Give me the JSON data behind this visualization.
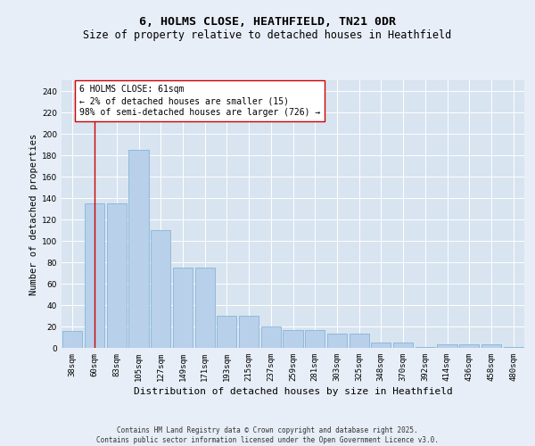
{
  "title1": "6, HOLMS CLOSE, HEATHFIELD, TN21 0DR",
  "title2": "Size of property relative to detached houses in Heathfield",
  "xlabel": "Distribution of detached houses by size in Heathfield",
  "ylabel": "Number of detached properties",
  "categories": [
    "38sqm",
    "60sqm",
    "83sqm",
    "105sqm",
    "127sqm",
    "149sqm",
    "171sqm",
    "193sqm",
    "215sqm",
    "237sqm",
    "259sqm",
    "281sqm",
    "303sqm",
    "325sqm",
    "348sqm",
    "370sqm",
    "392sqm",
    "414sqm",
    "436sqm",
    "458sqm",
    "480sqm"
  ],
  "values": [
    16,
    135,
    135,
    185,
    110,
    75,
    75,
    30,
    30,
    20,
    17,
    17,
    13,
    13,
    5,
    5,
    1,
    3,
    3,
    3,
    1
  ],
  "bar_color": "#b8d0ea",
  "bar_edge_color": "#7aadd4",
  "annotation_box_text": "6 HOLMS CLOSE: 61sqm\n← 2% of detached houses are smaller (15)\n98% of semi-detached houses are larger (726) →",
  "vline_x": 1,
  "vline_color": "#cc0000",
  "ylim": [
    0,
    250
  ],
  "yticks": [
    0,
    20,
    40,
    60,
    80,
    100,
    120,
    140,
    160,
    180,
    200,
    220,
    240
  ],
  "bg_color": "#e8eef7",
  "plot_bg_color": "#d8e4f0",
  "footer_text": "Contains HM Land Registry data © Crown copyright and database right 2025.\nContains public sector information licensed under the Open Government Licence v3.0.",
  "title1_fontsize": 9.5,
  "title2_fontsize": 8.5,
  "xlabel_fontsize": 8,
  "ylabel_fontsize": 7.5,
  "tick_fontsize": 6.5,
  "annotation_fontsize": 7,
  "footer_fontsize": 5.5
}
